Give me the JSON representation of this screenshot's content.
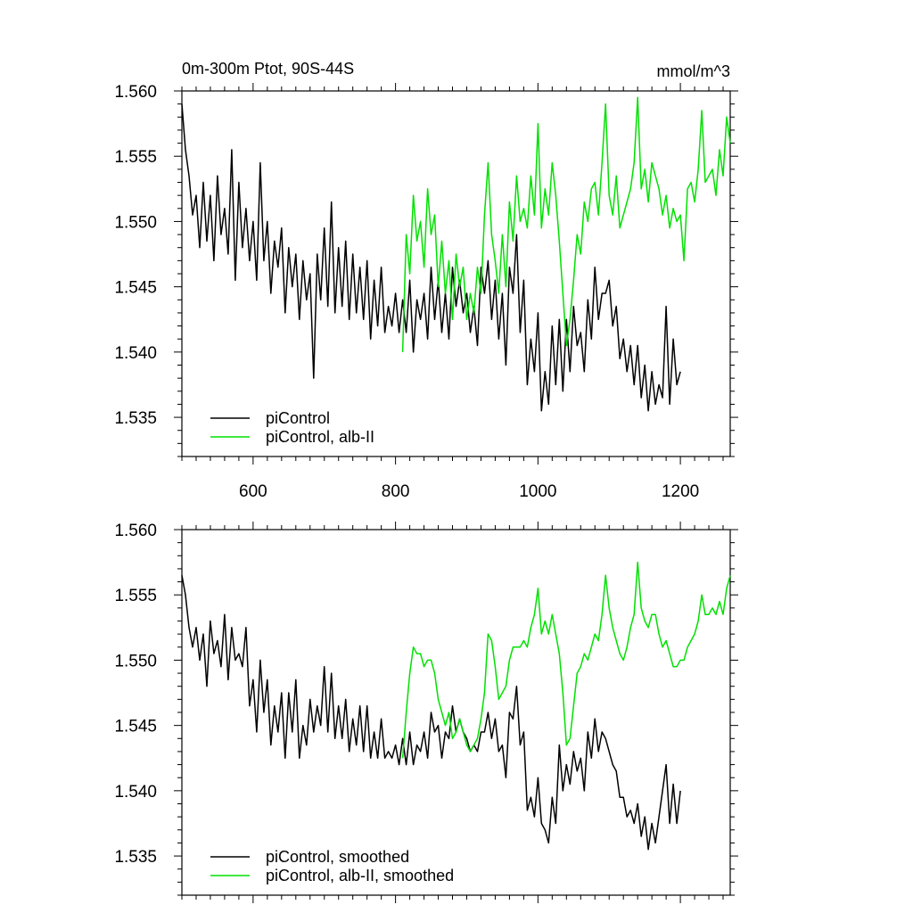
{
  "chart_data": [
    {
      "type": "line",
      "title": "0m-300m Ptot, 90S-44S",
      "units": "mmol/m^3",
      "xlim": [
        500,
        1270
      ],
      "ylim": [
        1.532,
        1.56
      ],
      "x_ticks": [
        600,
        800,
        1000,
        1200
      ],
      "x_tick_labels": [
        "600",
        "800",
        "1000",
        "1200"
      ],
      "y_ticks": [
        1.535,
        1.54,
        1.545,
        1.55,
        1.555,
        1.56
      ],
      "y_tick_labels": [
        "1.535",
        "1.540",
        "1.545",
        "1.550",
        "1.555",
        "1.560"
      ],
      "legend_position": "bottom-left",
      "series": [
        {
          "name": "piControl",
          "color": "#000000",
          "x": [
            500,
            505,
            510,
            515,
            520,
            525,
            530,
            535,
            540,
            545,
            550,
            555,
            560,
            565,
            570,
            575,
            580,
            585,
            590,
            595,
            600,
            605,
            610,
            615,
            620,
            625,
            630,
            635,
            640,
            645,
            650,
            655,
            660,
            665,
            670,
            675,
            680,
            685,
            690,
            695,
            700,
            705,
            710,
            715,
            720,
            725,
            730,
            735,
            740,
            745,
            750,
            755,
            760,
            765,
            770,
            775,
            780,
            785,
            790,
            795,
            800,
            805,
            810,
            815,
            820,
            825,
            830,
            835,
            840,
            845,
            850,
            855,
            860,
            865,
            870,
            875,
            880,
            885,
            890,
            895,
            900,
            905,
            910,
            915,
            920,
            925,
            930,
            935,
            940,
            945,
            950,
            955,
            960,
            965,
            970,
            975,
            980,
            985,
            990,
            995,
            1000,
            1005,
            1010,
            1015,
            1020,
            1025,
            1030,
            1035,
            1040,
            1045,
            1050,
            1055,
            1060,
            1065,
            1070,
            1075,
            1080,
            1085,
            1090,
            1095,
            1100,
            1105,
            1110,
            1115,
            1120,
            1125,
            1130,
            1135,
            1140,
            1145,
            1150,
            1155,
            1160,
            1165,
            1170,
            1175,
            1180,
            1185,
            1190,
            1195,
            1200
          ],
          "values": [
            1.559,
            1.5555,
            1.5535,
            1.5505,
            1.552,
            1.548,
            1.553,
            1.5485,
            1.552,
            1.547,
            1.5535,
            1.549,
            1.551,
            1.5475,
            1.5555,
            1.5455,
            1.553,
            1.548,
            1.551,
            1.547,
            1.55,
            1.5455,
            1.5545,
            1.547,
            1.55,
            1.5445,
            1.5485,
            1.5465,
            1.5495,
            1.543,
            1.548,
            1.545,
            1.5475,
            1.5425,
            1.547,
            1.544,
            1.546,
            1.538,
            1.5475,
            1.544,
            1.5495,
            1.5435,
            1.5515,
            1.543,
            1.548,
            1.5435,
            1.5485,
            1.5425,
            1.5475,
            1.543,
            1.5465,
            1.5425,
            1.547,
            1.541,
            1.5455,
            1.542,
            1.5465,
            1.5415,
            1.5435,
            1.542,
            1.5445,
            1.5415,
            1.544,
            1.5415,
            1.5455,
            1.54,
            1.544,
            1.5425,
            1.5445,
            1.541,
            1.5465,
            1.5425,
            1.5455,
            1.5415,
            1.5445,
            1.541,
            1.5465,
            1.5435,
            1.5455,
            1.543,
            1.5445,
            1.5415,
            1.5435,
            1.5405,
            1.5465,
            1.5445,
            1.547,
            1.5425,
            1.5455,
            1.541,
            1.5445,
            1.539,
            1.5465,
            1.5445,
            1.549,
            1.5415,
            1.5455,
            1.5375,
            1.541,
            1.5385,
            1.543,
            1.5355,
            1.5385,
            1.536,
            1.542,
            1.5375,
            1.5425,
            1.537,
            1.5425,
            1.5385,
            1.5435,
            1.5405,
            1.5415,
            1.5385,
            1.544,
            1.541,
            1.5465,
            1.5425,
            1.5445,
            1.5445,
            1.5455,
            1.542,
            1.5435,
            1.5395,
            1.541,
            1.5385,
            1.5405,
            1.5375,
            1.5405,
            1.5365,
            1.539,
            1.5355,
            1.5385,
            1.536,
            1.5375,
            1.5365,
            1.5435,
            1.536,
            1.541,
            1.5375,
            1.5385
          ]
        },
        {
          "name": "piControl, alb-II",
          "color": "#00e000",
          "x": [
            810,
            815,
            820,
            825,
            830,
            835,
            840,
            845,
            850,
            855,
            860,
            865,
            870,
            875,
            880,
            885,
            890,
            895,
            900,
            905,
            910,
            915,
            920,
            925,
            930,
            935,
            940,
            945,
            950,
            955,
            960,
            965,
            970,
            975,
            980,
            985,
            990,
            995,
            1000,
            1005,
            1010,
            1015,
            1020,
            1025,
            1030,
            1035,
            1040,
            1045,
            1050,
            1055,
            1060,
            1065,
            1070,
            1075,
            1080,
            1085,
            1090,
            1095,
            1100,
            1105,
            1110,
            1115,
            1120,
            1125,
            1130,
            1135,
            1140,
            1145,
            1150,
            1155,
            1160,
            1165,
            1170,
            1175,
            1180,
            1185,
            1190,
            1195,
            1200,
            1205,
            1210,
            1215,
            1220,
            1225,
            1230,
            1235,
            1240,
            1245,
            1250,
            1255,
            1260,
            1265,
            1270
          ],
          "values": [
            1.54,
            1.549,
            1.546,
            1.552,
            1.5485,
            1.55,
            1.5465,
            1.5525,
            1.549,
            1.5505,
            1.545,
            1.5485,
            1.5445,
            1.547,
            1.5425,
            1.5475,
            1.545,
            1.5465,
            1.5425,
            1.5445,
            1.543,
            1.5465,
            1.5445,
            1.5505,
            1.5545,
            1.549,
            1.547,
            1.5445,
            1.549,
            1.545,
            1.5515,
            1.5485,
            1.5535,
            1.55,
            1.551,
            1.5495,
            1.5535,
            1.5505,
            1.5575,
            1.5495,
            1.5525,
            1.5505,
            1.5545,
            1.552,
            1.5485,
            1.5445,
            1.5405,
            1.5425,
            1.5455,
            1.549,
            1.5475,
            1.5515,
            1.55,
            1.5525,
            1.553,
            1.5505,
            1.5545,
            1.559,
            1.552,
            1.5505,
            1.5535,
            1.5495,
            1.5505,
            1.5515,
            1.5525,
            1.5545,
            1.5595,
            1.5525,
            1.554,
            1.5515,
            1.5545,
            1.5535,
            1.5525,
            1.5505,
            1.552,
            1.5495,
            1.551,
            1.55,
            1.5505,
            1.547,
            1.5525,
            1.553,
            1.5515,
            1.554,
            1.5585,
            1.553,
            1.5535,
            1.554,
            1.552,
            1.5555,
            1.5535,
            1.558,
            1.556
          ]
        }
      ]
    },
    {
      "type": "line",
      "xlim": [
        500,
        1270
      ],
      "ylim": [
        1.532,
        1.56
      ],
      "x_ticks": [
        600,
        800,
        1000,
        1200
      ],
      "y_ticks": [
        1.535,
        1.54,
        1.545,
        1.55,
        1.555,
        1.56
      ],
      "y_tick_labels": [
        "1.535",
        "1.540",
        "1.545",
        "1.550",
        "1.555",
        "1.560"
      ],
      "legend_position": "bottom-left",
      "series": [
        {
          "name": "piControl, smoothed",
          "color": "#000000",
          "x": [
            500,
            505,
            510,
            515,
            520,
            525,
            530,
            535,
            540,
            545,
            550,
            555,
            560,
            565,
            570,
            575,
            580,
            585,
            590,
            595,
            600,
            605,
            610,
            615,
            620,
            625,
            630,
            635,
            640,
            645,
            650,
            655,
            660,
            665,
            670,
            675,
            680,
            685,
            690,
            695,
            700,
            705,
            710,
            715,
            720,
            725,
            730,
            735,
            740,
            745,
            750,
            755,
            760,
            765,
            770,
            775,
            780,
            785,
            790,
            795,
            800,
            805,
            810,
            815,
            820,
            825,
            830,
            835,
            840,
            845,
            850,
            855,
            860,
            865,
            870,
            875,
            880,
            885,
            890,
            895,
            900,
            905,
            910,
            915,
            920,
            925,
            930,
            935,
            940,
            945,
            950,
            955,
            960,
            965,
            970,
            975,
            980,
            985,
            990,
            995,
            1000,
            1005,
            1010,
            1015,
            1020,
            1025,
            1030,
            1035,
            1040,
            1045,
            1050,
            1055,
            1060,
            1065,
            1070,
            1075,
            1080,
            1085,
            1090,
            1095,
            1100,
            1105,
            1110,
            1115,
            1120,
            1125,
            1130,
            1135,
            1140,
            1145,
            1150,
            1155,
            1160,
            1165,
            1170,
            1175,
            1180,
            1185,
            1190,
            1195,
            1200
          ],
          "values": [
            1.5565,
            1.555,
            1.5525,
            1.551,
            1.5525,
            1.55,
            1.552,
            1.548,
            1.553,
            1.5505,
            1.5515,
            1.5495,
            1.5535,
            1.5485,
            1.5525,
            1.55,
            1.5505,
            1.5495,
            1.5525,
            1.5465,
            1.5485,
            1.5445,
            1.55,
            1.546,
            1.5485,
            1.5435,
            1.5465,
            1.5445,
            1.5475,
            1.5425,
            1.5475,
            1.5445,
            1.5485,
            1.5425,
            1.545,
            1.5435,
            1.547,
            1.5445,
            1.5465,
            1.545,
            1.5495,
            1.5445,
            1.549,
            1.544,
            1.5465,
            1.544,
            1.547,
            1.543,
            1.5455,
            1.5435,
            1.5465,
            1.543,
            1.5465,
            1.5425,
            1.5445,
            1.5425,
            1.5455,
            1.5425,
            1.543,
            1.5425,
            1.5435,
            1.542,
            1.544,
            1.542,
            1.5445,
            1.542,
            1.5435,
            1.543,
            1.5445,
            1.5425,
            1.546,
            1.5445,
            1.545,
            1.5425,
            1.5445,
            1.544,
            1.5465,
            1.5445,
            1.5455,
            1.5445,
            1.544,
            1.543,
            1.5435,
            1.543,
            1.5445,
            1.5445,
            1.546,
            1.544,
            1.5455,
            1.543,
            1.5435,
            1.541,
            1.546,
            1.5455,
            1.548,
            1.5435,
            1.5445,
            1.5385,
            1.5395,
            1.538,
            1.541,
            1.5375,
            1.537,
            1.536,
            1.5395,
            1.5375,
            1.5435,
            1.54,
            1.542,
            1.5405,
            1.543,
            1.5415,
            1.5425,
            1.54,
            1.5445,
            1.5425,
            1.5455,
            1.543,
            1.5445,
            1.544,
            1.543,
            1.542,
            1.5415,
            1.5395,
            1.5395,
            1.538,
            1.5385,
            1.5375,
            1.539,
            1.5365,
            1.538,
            1.5355,
            1.5375,
            1.536,
            1.538,
            1.54,
            1.542,
            1.5375,
            1.5405,
            1.5375,
            1.54
          ]
        },
        {
          "name": "piControl, alb-II, smoothed",
          "color": "#00e000",
          "x": [
            810,
            815,
            820,
            825,
            830,
            835,
            840,
            845,
            850,
            855,
            860,
            865,
            870,
            875,
            880,
            885,
            890,
            895,
            900,
            905,
            910,
            915,
            920,
            925,
            930,
            935,
            940,
            945,
            950,
            955,
            960,
            965,
            970,
            975,
            980,
            985,
            990,
            995,
            1000,
            1005,
            1010,
            1015,
            1020,
            1025,
            1030,
            1035,
            1040,
            1045,
            1050,
            1055,
            1060,
            1065,
            1070,
            1075,
            1080,
            1085,
            1090,
            1095,
            1100,
            1105,
            1110,
            1115,
            1120,
            1125,
            1130,
            1135,
            1140,
            1145,
            1150,
            1155,
            1160,
            1165,
            1170,
            1175,
            1180,
            1185,
            1190,
            1195,
            1200,
            1205,
            1210,
            1215,
            1220,
            1225,
            1230,
            1235,
            1240,
            1245,
            1250,
            1255,
            1260,
            1265,
            1270
          ],
          "values": [
            1.5425,
            1.546,
            1.549,
            1.551,
            1.5505,
            1.5505,
            1.5495,
            1.55,
            1.55,
            1.549,
            1.547,
            1.546,
            1.545,
            1.546,
            1.544,
            1.5445,
            1.5455,
            1.5445,
            1.5435,
            1.543,
            1.5435,
            1.544,
            1.5455,
            1.5475,
            1.552,
            1.5515,
            1.5495,
            1.547,
            1.5475,
            1.548,
            1.55,
            1.551,
            1.551,
            1.551,
            1.5515,
            1.551,
            1.5525,
            1.5535,
            1.5555,
            1.552,
            1.553,
            1.552,
            1.5535,
            1.552,
            1.5505,
            1.5475,
            1.5435,
            1.544,
            1.5465,
            1.549,
            1.5495,
            1.5505,
            1.55,
            1.551,
            1.552,
            1.5515,
            1.5535,
            1.5565,
            1.554,
            1.5525,
            1.5515,
            1.5505,
            1.55,
            1.551,
            1.5525,
            1.5535,
            1.5575,
            1.554,
            1.553,
            1.5525,
            1.5535,
            1.5535,
            1.552,
            1.551,
            1.5515,
            1.5505,
            1.5495,
            1.5495,
            1.55,
            1.55,
            1.551,
            1.5515,
            1.552,
            1.553,
            1.555,
            1.5535,
            1.5535,
            1.554,
            1.5535,
            1.5545,
            1.5535,
            1.5555,
            1.5565
          ]
        }
      ]
    }
  ]
}
